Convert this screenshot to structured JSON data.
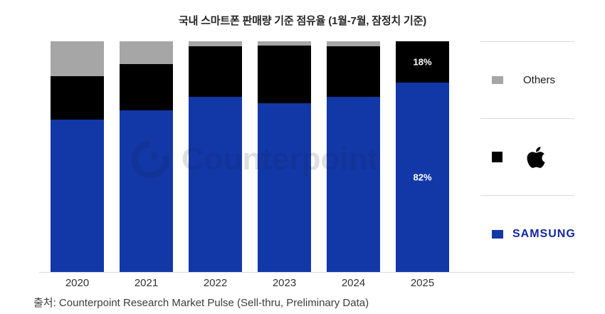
{
  "title": "국내 스마트폰 판매량 기준 점유율 (1월-7월, 잠정치 기준)",
  "source": "출처: Counterpoint Research Market Pulse (Sell-thru, Preliminary Data)",
  "watermark": {
    "logo_icon": "counterpoint-logo",
    "text": "Counterpoint"
  },
  "legend": {
    "position": "right",
    "others": {
      "label": "Others",
      "color": "#a6a6a6"
    },
    "apple": {
      "icon": "apple-logo",
      "color": "#000000"
    },
    "samsung": {
      "label": "SAMSUNG",
      "color": "#1428a0"
    }
  },
  "chart_data": {
    "type": "bar",
    "stacked": true,
    "title": "국내 스마트폰 판매량 기준 점유율 (1월-7월, 잠정치 기준)",
    "categories": [
      "2020",
      "2021",
      "2022",
      "2023",
      "2024",
      "2025"
    ],
    "series": [
      {
        "name": "SAMSUNG",
        "color": "#1238a8",
        "values": [
          66,
          70,
          76,
          73,
          76,
          82
        ]
      },
      {
        "name": "Apple",
        "color": "#000000",
        "values": [
          19,
          20,
          22,
          25,
          22,
          18
        ]
      },
      {
        "name": "Others",
        "color": "#a6a6a6",
        "values": [
          15,
          10,
          2,
          2,
          2,
          0
        ]
      }
    ],
    "data_labels": {
      "2025": {
        "SAMSUNG": "82%",
        "Apple": "18%"
      }
    },
    "ylim": [
      0,
      100
    ],
    "unit": "%",
    "grid": false,
    "legend_position": "right"
  }
}
